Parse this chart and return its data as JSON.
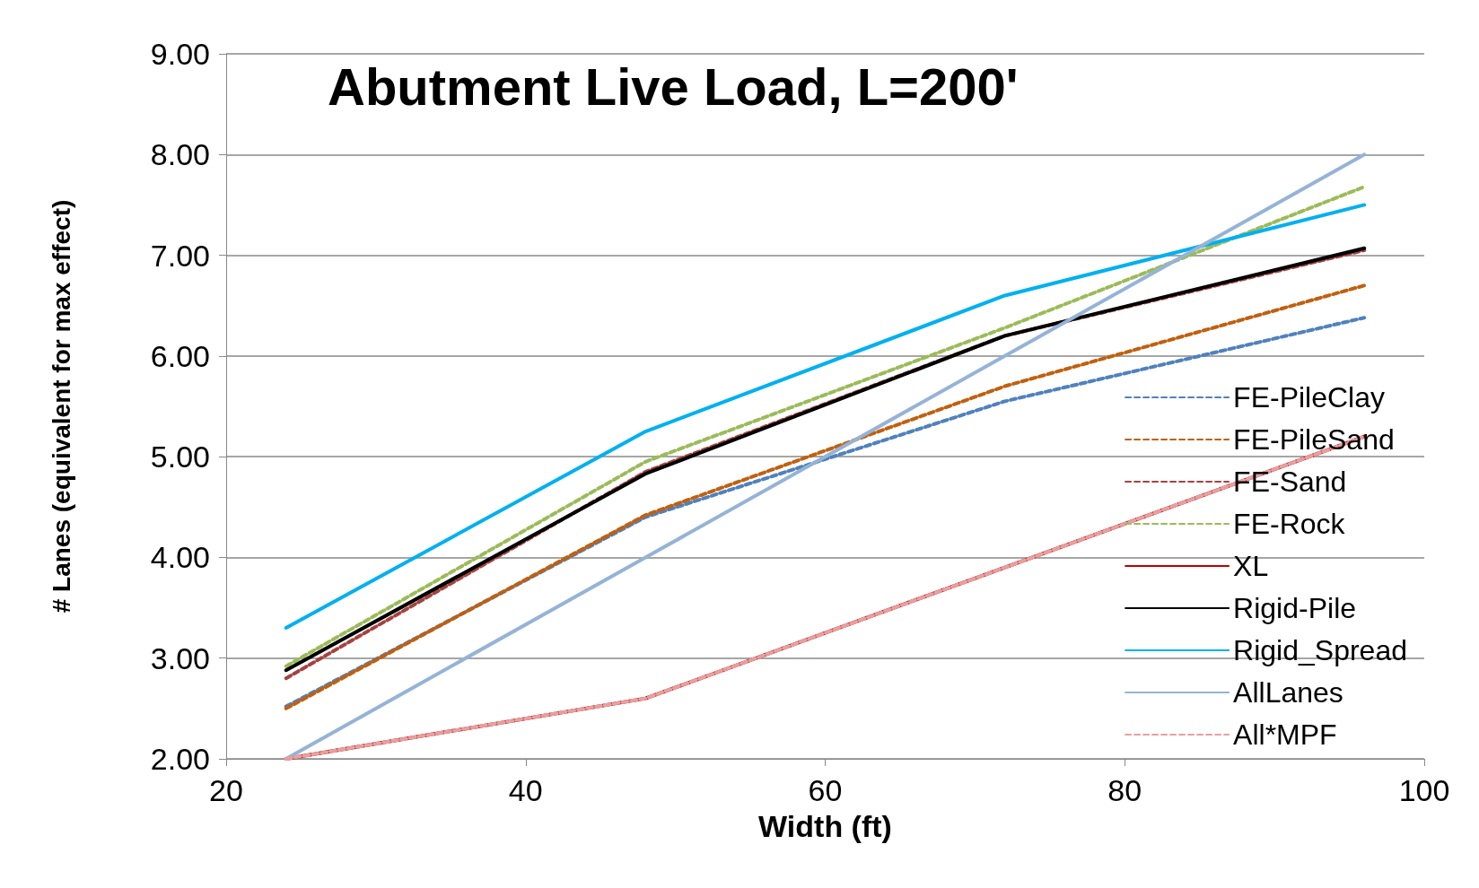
{
  "chart_data": {
    "type": "line",
    "title": "Abutment Live Load, L=200'",
    "xlabel": "Width (ft)",
    "ylabel": "# Lanes (equivalent for max effect)",
    "x": [
      24,
      48,
      72,
      96
    ],
    "xlim": [
      20,
      100
    ],
    "xticks": [
      20,
      40,
      60,
      80,
      100
    ],
    "ylim": [
      2,
      9
    ],
    "yticks": [
      {
        "value": 2,
        "label": "2.00"
      },
      {
        "value": 3,
        "label": "3.00"
      },
      {
        "value": 4,
        "label": "4.00"
      },
      {
        "value": 5,
        "label": "5.00"
      },
      {
        "value": 6,
        "label": "6.00"
      },
      {
        "value": 7,
        "label": "7.00"
      },
      {
        "value": 8,
        "label": "8.00"
      },
      {
        "value": 9,
        "label": "9.00"
      }
    ],
    "grid": "y",
    "legend": "right",
    "marker": "none",
    "series": [
      {
        "name": "FE-PileClay",
        "color": "#4f81bd",
        "line_style": "dashed",
        "values": [
          2.52,
          4.4,
          5.55,
          6.38
        ]
      },
      {
        "name": "FE-PileSand",
        "color": "#c0600f",
        "line_style": "dashed",
        "values": [
          2.5,
          4.42,
          5.7,
          6.7
        ]
      },
      {
        "name": "FE-Sand",
        "color": "#a5423f",
        "line_style": "dashed",
        "values": [
          2.8,
          4.85,
          6.2,
          7.05
        ]
      },
      {
        "name": "FE-Rock",
        "color": "#9bbb59",
        "line_style": "dashed",
        "values": [
          2.92,
          4.95,
          6.28,
          7.68
        ]
      },
      {
        "name": "XL",
        "color": "#c00000",
        "line_style": "solid",
        "values": [
          2,
          2.6,
          3.9,
          5.2
        ]
      },
      {
        "name": "Rigid-Pile",
        "color": "#000000",
        "line_style": "solid",
        "values": [
          2.88,
          4.83,
          6.2,
          7.07
        ]
      },
      {
        "name": "Rigid_Spread",
        "color": "#00b0f0",
        "line_style": "solid",
        "values": [
          3.3,
          5.25,
          6.6,
          7.5
        ]
      },
      {
        "name": "AllLanes",
        "color": "#95b3d7",
        "line_style": "solid",
        "values": [
          2,
          4,
          6,
          8
        ]
      },
      {
        "name": "All*MPF",
        "color": "#e6a0a0",
        "line_style": "dashed",
        "values": [
          2,
          2.6,
          3.9,
          5.2
        ]
      }
    ]
  }
}
